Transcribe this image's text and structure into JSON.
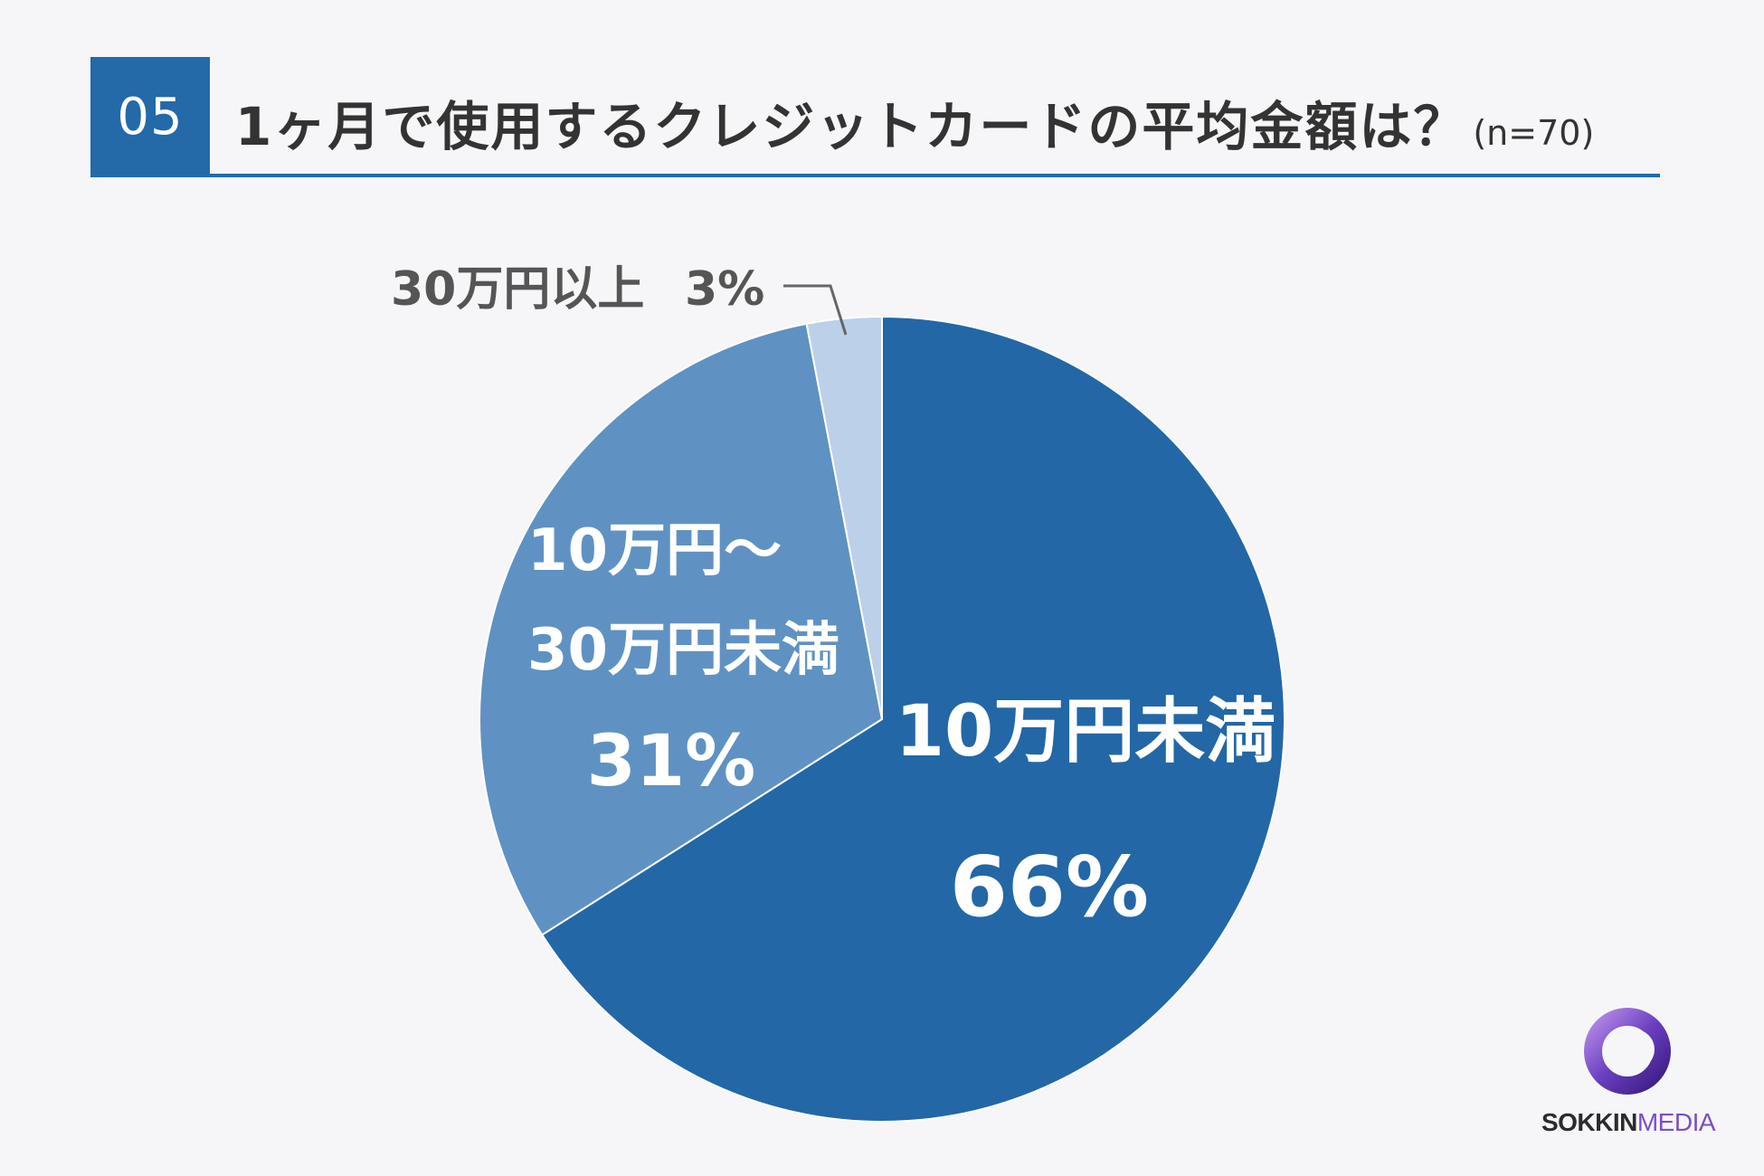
{
  "header": {
    "number": "05",
    "title": "1ヶ月で使用するクレジットカードの平均金額は？",
    "sample": "(n=70)"
  },
  "chart_data": {
    "type": "pie",
    "title": "1ヶ月で使用するクレジットカードの平均金額は？",
    "slices": [
      {
        "label": "10万円未満",
        "value": 66,
        "value_label": "66%",
        "color": "#2367a6"
      },
      {
        "label_lines": [
          "10万円～",
          "30万円未満"
        ],
        "value": 31,
        "value_label": "31%",
        "color": "#5f92c2"
      },
      {
        "label": "30万円以上",
        "value": 3,
        "value_label": "3%",
        "color": "#bdd0ea"
      }
    ]
  },
  "logo": {
    "part1": "SOKKIN",
    "part2": "MEDIA"
  }
}
